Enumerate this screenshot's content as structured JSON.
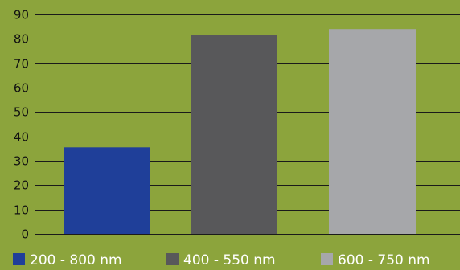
{
  "chart_data": {
    "type": "bar",
    "title": "",
    "xlabel": "",
    "ylabel": "",
    "categories": [
      "200 - 800 nm",
      "400 - 550 nm",
      "600 - 750 nm"
    ],
    "values": [
      35.5,
      81.7,
      84.0
    ],
    "ylim": [
      0,
      90
    ],
    "yticks": [
      0,
      10,
      20,
      30,
      40,
      50,
      60,
      70,
      80,
      90
    ],
    "grid": true,
    "legend_position": "bottom",
    "colors": [
      "#1f3f99",
      "#58585a",
      "#a6a7aa"
    ],
    "background_color": "#8ca43c",
    "gridline_color": "#1a1a1a"
  }
}
